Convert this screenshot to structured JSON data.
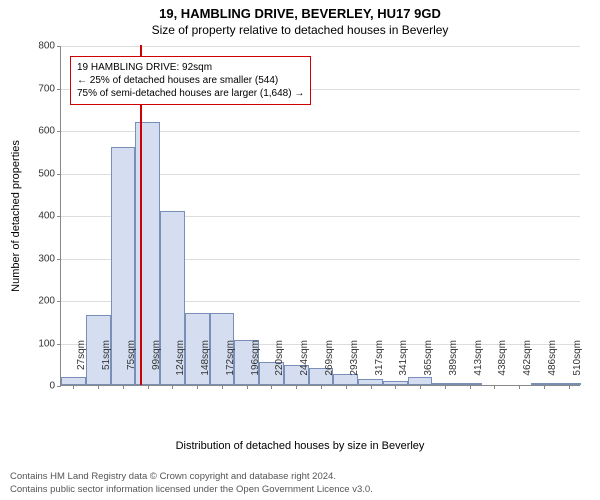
{
  "title_main": "19, HAMBLING DRIVE, BEVERLEY, HU17 9GD",
  "title_sub": "Size of property relative to detached houses in Beverley",
  "chart": {
    "type": "histogram",
    "y_axis_title": "Number of detached properties",
    "x_axis_title": "Distribution of detached houses by size in Beverley",
    "ylim": [
      0,
      800
    ],
    "ytick_step": 100,
    "yticks": [
      0,
      100,
      200,
      300,
      400,
      500,
      600,
      700,
      800
    ],
    "xticks": [
      "27sqm",
      "51sqm",
      "75sqm",
      "99sqm",
      "124sqm",
      "148sqm",
      "172sqm",
      "196sqm",
      "220sqm",
      "244sqm",
      "269sqm",
      "293sqm",
      "317sqm",
      "341sqm",
      "365sqm",
      "389sqm",
      "413sqm",
      "438sqm",
      "462sqm",
      "486sqm",
      "510sqm"
    ],
    "values": [
      20,
      165,
      560,
      620,
      410,
      170,
      170,
      105,
      55,
      48,
      40,
      25,
      15,
      10,
      18,
      4,
      2,
      0,
      0,
      4,
      2
    ],
    "bar_fill": "#d5def0",
    "bar_border": "#7a8fb8",
    "background_color": "#ffffff",
    "grid_color": "#dddddd",
    "axis_color": "#888888",
    "tick_fontsize": 10,
    "axis_title_fontsize": 11,
    "title_fontsize": 13,
    "marker": {
      "position_sqm": 92,
      "color": "#d00000",
      "label_line1": "19 HAMBLING DRIVE: 92sqm",
      "label_line2": "← 25% of detached houses are smaller (544)",
      "label_line3": "75% of semi-detached houses are larger (1,648) →"
    }
  },
  "footer_line1": "Contains HM Land Registry data © Crown copyright and database right 2024.",
  "footer_line2": "Contains public sector information licensed under the Open Government Licence v3.0."
}
